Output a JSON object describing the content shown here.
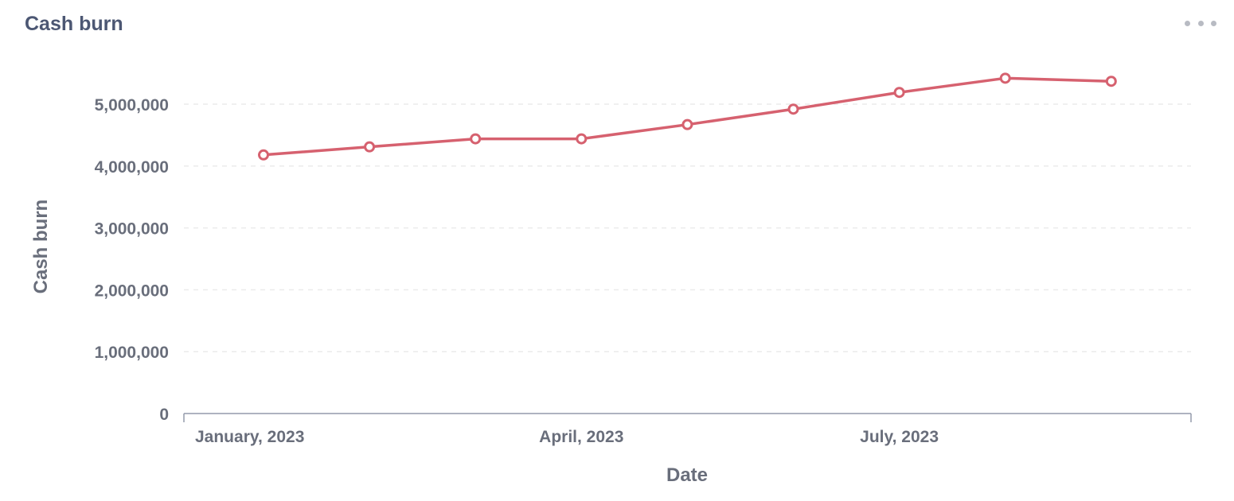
{
  "card": {
    "title": "Cash burn",
    "menu_icon": "ellipsis-icon"
  },
  "colors": {
    "line": "#d6616f",
    "text": "#696e7b",
    "title": "#4c5773",
    "grid": "#ebebeb",
    "axis": "#949aab"
  },
  "chart_data": {
    "type": "line",
    "title": "Cash burn",
    "xlabel": "Date",
    "ylabel": "Cash burn",
    "x": [
      "2023-01",
      "2023-02",
      "2023-03",
      "2023-04",
      "2023-05",
      "2023-06",
      "2023-07",
      "2023-08",
      "2023-09"
    ],
    "x_tick_labels": [
      {
        "x": "2023-01",
        "label": "January, 2023"
      },
      {
        "x": "2023-04",
        "label": "April, 2023"
      },
      {
        "x": "2023-07",
        "label": "July, 2023"
      }
    ],
    "series": [
      {
        "values": [
          4180000,
          4310000,
          4440000,
          4440000,
          4670000,
          4920000,
          5190000,
          5420000,
          5370000
        ]
      }
    ],
    "ylim": [
      0,
      5000000
    ],
    "y_ticks": [
      0,
      1000000,
      2000000,
      3000000,
      4000000,
      5000000
    ],
    "y_tick_labels": [
      "0",
      "1,000,000",
      "2,000,000",
      "3,000,000",
      "4,000,000",
      "5,000,000"
    ],
    "grid": true,
    "legend": "none"
  }
}
